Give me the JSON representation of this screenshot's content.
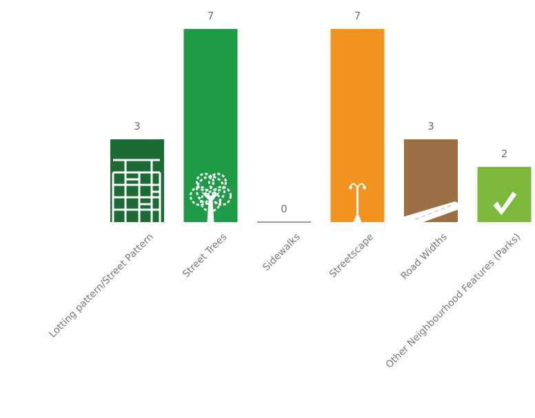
{
  "chart_data": {
    "type": "bar",
    "categories": [
      "Lotting pattern/Street Pattern",
      "Street Trees",
      "Sidewalks",
      "Streetscape",
      "Road Widths",
      "Other Neighbourhood Features (Parks)"
    ],
    "values": [
      3,
      7,
      0,
      7,
      3,
      2
    ],
    "colors": [
      "#1c6b34",
      "#1f9a47",
      "#9a9a9a",
      "#f2931f",
      "#9c6e43",
      "#7cb83c"
    ],
    "icons": [
      "street-grid-icon",
      "tree-icon",
      "",
      "street-lamp-icon",
      "road-icon",
      "checkmark-icon"
    ],
    "title": "",
    "xlabel": "",
    "ylabel": "",
    "ylim": [
      0,
      7
    ],
    "grid": false,
    "legend": "none"
  }
}
